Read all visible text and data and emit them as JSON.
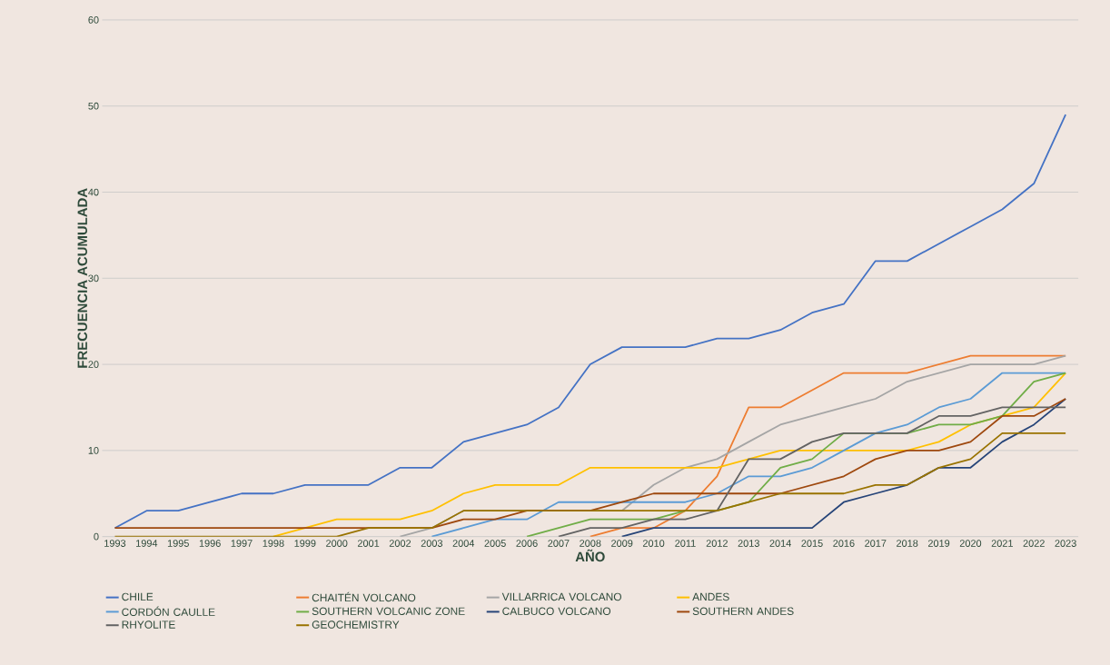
{
  "chart_data": {
    "type": "line",
    "xlabel": "AÑO",
    "ylabel": "FRECUENCIA ACUMULADA",
    "categories": [
      "1993",
      "1994",
      "1995",
      "1996",
      "1997",
      "1998",
      "1999",
      "2000",
      "2001",
      "2002",
      "2003",
      "2004",
      "2005",
      "2006",
      "2007",
      "2008",
      "2009",
      "2010",
      "2011",
      "2012",
      "2013",
      "2014",
      "2015",
      "2016",
      "2017",
      "2018",
      "2019",
      "2020",
      "2021",
      "2022",
      "2023"
    ],
    "ylim": [
      0,
      60
    ],
    "yticks": [
      0,
      10,
      20,
      30,
      40,
      50,
      60
    ],
    "grid": "y",
    "legend": "bottom",
    "marker": "none",
    "line_style": "solid",
    "series": [
      {
        "name": "CHILE",
        "color": "#4472c4",
        "values": [
          1,
          3,
          3,
          4,
          5,
          5,
          6,
          6,
          6,
          8,
          8,
          11,
          12,
          13,
          15,
          20,
          22,
          22,
          22,
          23,
          23,
          24,
          26,
          27,
          32,
          32,
          34,
          36,
          38,
          41,
          49
        ]
      },
      {
        "name": "CHAITÉN VOLCANO",
        "color": "#ed7d31",
        "values": [
          null,
          null,
          null,
          null,
          null,
          null,
          null,
          null,
          null,
          null,
          null,
          null,
          null,
          null,
          null,
          0,
          1,
          1,
          3,
          7,
          15,
          15,
          17,
          19,
          19,
          19,
          20,
          21,
          21,
          21,
          21
        ]
      },
      {
        "name": "VILLARRICA VOLCANO",
        "color": "#a5a5a5",
        "values": [
          null,
          null,
          null,
          null,
          null,
          null,
          null,
          null,
          null,
          0,
          1,
          3,
          null,
          null,
          null,
          null,
          3,
          6,
          8,
          9,
          11,
          13,
          14,
          15,
          16,
          18,
          19,
          20,
          20,
          20,
          21
        ]
      },
      {
        "name": "ANDES",
        "color": "#ffc000",
        "values": [
          null,
          null,
          null,
          null,
          null,
          0,
          1,
          2,
          2,
          2,
          3,
          5,
          6,
          6,
          6,
          8,
          8,
          8,
          8,
          8,
          9,
          10,
          10,
          10,
          10,
          10,
          11,
          13,
          14,
          15,
          19
        ]
      },
      {
        "name": "CORDÓN CAULLE",
        "color": "#5b9bd5",
        "values": [
          null,
          null,
          null,
          null,
          null,
          null,
          null,
          null,
          null,
          null,
          0,
          1,
          2,
          2,
          4,
          4,
          4,
          4,
          4,
          5,
          7,
          7,
          8,
          10,
          12,
          13,
          15,
          16,
          19,
          19,
          19
        ]
      },
      {
        "name": "SOUTHERN VOLCANIC ZONE",
        "color": "#70ad47",
        "values": [
          null,
          null,
          null,
          null,
          null,
          null,
          null,
          null,
          null,
          null,
          null,
          null,
          null,
          0,
          1,
          2,
          2,
          2,
          3,
          3,
          4,
          8,
          9,
          12,
          12,
          12,
          13,
          13,
          14,
          18,
          19
        ]
      },
      {
        "name": "CALBUCO VOLCANO",
        "color": "#264478",
        "values": [
          null,
          null,
          null,
          null,
          null,
          null,
          null,
          null,
          null,
          null,
          null,
          null,
          null,
          null,
          null,
          null,
          0,
          1,
          1,
          1,
          1,
          1,
          1,
          4,
          5,
          6,
          8,
          8,
          11,
          13,
          16
        ]
      },
      {
        "name": "SOUTHERN ANDES",
        "color": "#9e480e",
        "values": [
          1,
          1,
          1,
          1,
          1,
          1,
          1,
          1,
          1,
          1,
          1,
          2,
          2,
          3,
          3,
          3,
          4,
          5,
          5,
          5,
          5,
          5,
          6,
          7,
          9,
          10,
          10,
          11,
          14,
          14,
          16
        ]
      },
      {
        "name": "RHYOLITE",
        "color": "#636363",
        "values": [
          null,
          null,
          null,
          null,
          null,
          null,
          null,
          null,
          null,
          null,
          null,
          null,
          null,
          null,
          0,
          1,
          1,
          2,
          2,
          3,
          9,
          9,
          11,
          12,
          12,
          12,
          14,
          14,
          15,
          15,
          15
        ]
      },
      {
        "name": "GEOCHEMISTRY",
        "color": "#997300",
        "values": [
          0,
          0,
          0,
          0,
          0,
          0,
          0,
          0,
          1,
          1,
          1,
          3,
          3,
          3,
          3,
          3,
          3,
          3,
          3,
          3,
          4,
          5,
          5,
          5,
          6,
          6,
          8,
          9,
          12,
          12,
          12
        ]
      }
    ]
  }
}
